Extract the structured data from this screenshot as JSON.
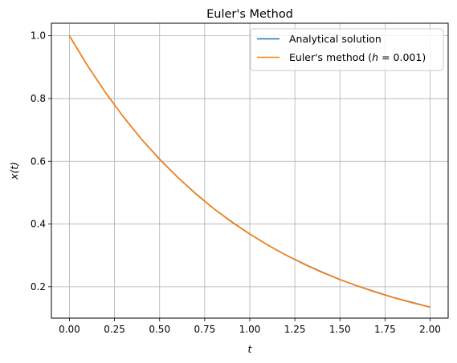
{
  "chart_data": {
    "type": "line",
    "title": "Euler's Method",
    "xlabel": "t",
    "ylabel": "x(t)",
    "xlim": [
      -0.1,
      2.1
    ],
    "ylim": [
      0.1,
      1.04
    ],
    "xticks": [
      0.0,
      0.25,
      0.5,
      0.75,
      1.0,
      1.25,
      1.5,
      1.75,
      2.0
    ],
    "xtick_labels": [
      "0.00",
      "0.25",
      "0.50",
      "0.75",
      "1.00",
      "1.25",
      "1.50",
      "1.75",
      "2.00"
    ],
    "yticks": [
      0.2,
      0.4,
      0.6,
      0.8,
      1.0
    ],
    "ytick_labels": [
      "0.2",
      "0.4",
      "0.6",
      "0.8",
      "1.0"
    ],
    "grid": true,
    "legend_position": "top-right",
    "x": [
      0.0,
      0.1,
      0.2,
      0.3,
      0.4,
      0.5,
      0.6,
      0.7,
      0.8,
      0.9,
      1.0,
      1.1,
      1.2,
      1.3,
      1.4,
      1.5,
      1.6,
      1.7,
      1.8,
      1.9,
      2.0
    ],
    "series": [
      {
        "name": "Analytical solution",
        "color": "#1f77b4",
        "values": [
          1.0,
          0.905,
          0.819,
          0.741,
          0.67,
          0.607,
          0.549,
          0.497,
          0.449,
          0.407,
          0.368,
          0.333,
          0.301,
          0.273,
          0.247,
          0.223,
          0.202,
          0.183,
          0.165,
          0.15,
          0.135
        ]
      },
      {
        "name": "Euler's method (h = 0.001)",
        "color": "#ff7f0e",
        "values": [
          1.0,
          0.905,
          0.819,
          0.741,
          0.67,
          0.606,
          0.549,
          0.496,
          0.449,
          0.406,
          0.368,
          0.333,
          0.301,
          0.272,
          0.246,
          0.223,
          0.202,
          0.182,
          0.165,
          0.149,
          0.135
        ]
      }
    ]
  },
  "legend": {
    "entry1": "Analytical solution",
    "entry2_prefix": "Euler's method (",
    "entry2_var": "h",
    "entry2_eq": " = 0.001",
    "entry2_suffix": ")"
  }
}
